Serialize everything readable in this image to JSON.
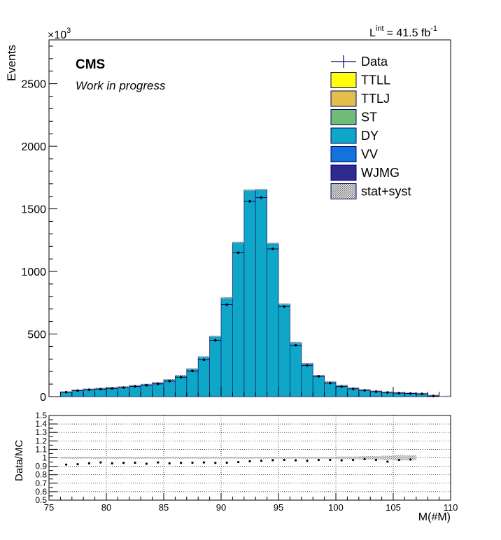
{
  "chart_data": [
    {
      "type": "bar",
      "stacked": true,
      "ylabel": "Events",
      "y_scale_label": "×10",
      "y_scale_exp": "3",
      "lumi_label": "L",
      "lumi_sup": "int",
      "lumi_value": "= 41.5 fb",
      "lumi_unit_exp": "-1",
      "cms_label": "CMS",
      "status_label": "Work in progress",
      "xlim": [
        75,
        110
      ],
      "ylim": [
        0,
        2850
      ],
      "yticks": [
        0,
        500,
        1000,
        1500,
        2000,
        2500
      ],
      "x_bin_edges": [
        76,
        77,
        78,
        79,
        80,
        81,
        82,
        83,
        84,
        85,
        86,
        87,
        88,
        89,
        90,
        91,
        92,
        93,
        94,
        95,
        96,
        97,
        98,
        99,
        100,
        101,
        102,
        103,
        104,
        105,
        106,
        107,
        108,
        109,
        110
      ],
      "series": [
        {
          "name": "DY",
          "color": "#0fa7c7",
          "values": [
            38,
            52,
            60,
            66,
            72,
            78,
            88,
            98,
            112,
            135,
            168,
            222,
            318,
            482,
            790,
            1232,
            1650,
            1655,
            1225,
            740,
            432,
            265,
            168,
            118,
            90,
            70,
            55,
            44,
            36,
            32,
            28,
            25,
            10,
            3
          ]
        },
        {
          "name": "VV",
          "color": "#1173db",
          "values": [
            0,
            0,
            0,
            0,
            0,
            0,
            0,
            0,
            0,
            0,
            0,
            0,
            0,
            0,
            0,
            0,
            0,
            0,
            0,
            0,
            0,
            0,
            0,
            0,
            0,
            0,
            0,
            0,
            0,
            0,
            0,
            0,
            0,
            0
          ]
        },
        {
          "name": "WJMG",
          "color": "#2f2a90",
          "values": [
            0,
            0,
            0,
            0,
            0,
            0,
            0,
            0,
            0,
            0,
            0,
            0,
            0,
            0,
            0,
            0,
            0,
            0,
            0,
            0,
            0,
            0,
            0,
            0,
            0,
            0,
            0,
            0,
            0,
            0,
            0,
            0,
            0,
            0
          ]
        }
      ],
      "data_points": [
        35,
        48,
        55,
        60,
        66,
        72,
        82,
        91,
        102,
        124,
        155,
        205,
        295,
        450,
        735,
        1150,
        1560,
        1590,
        1180,
        720,
        410,
        250,
        162,
        108,
        80,
        62,
        50,
        40,
        33,
        28,
        25,
        22,
        5,
        null
      ],
      "legend": [
        {
          "label": "Data",
          "style": "marker",
          "color": "#00006b"
        },
        {
          "label": "TTLL",
          "style": "fill",
          "color": "#ffff0b"
        },
        {
          "label": "TTLJ",
          "style": "fill",
          "color": "#e3bf4a"
        },
        {
          "label": "ST",
          "style": "fill",
          "color": "#70bb77"
        },
        {
          "label": "DY",
          "style": "fill",
          "color": "#0fa7c7"
        },
        {
          "label": "VV",
          "style": "fill",
          "color": "#1173db"
        },
        {
          "label": "WJMG",
          "style": "fill",
          "color": "#2f2a90"
        },
        {
          "label": "stat+syst",
          "style": "hatch",
          "color": "#555555"
        }
      ],
      "legend_position": "top-right"
    },
    {
      "type": "scatter",
      "xlabel": "M(#M)",
      "ylabel": "Data/MC",
      "xlim": [
        75,
        110
      ],
      "ylim": [
        0.5,
        1.5
      ],
      "grid": true,
      "xticks": [
        75,
        80,
        85,
        90,
        95,
        100,
        105,
        110
      ],
      "yticks": [
        0.5,
        0.6,
        0.7,
        0.8,
        0.9,
        1,
        1.1,
        1.2,
        1.3,
        1.4,
        1.5
      ],
      "x": [
        76.5,
        77.5,
        78.5,
        79.5,
        80.5,
        81.5,
        82.5,
        83.5,
        84.5,
        85.5,
        86.5,
        87.5,
        88.5,
        89.5,
        90.5,
        91.5,
        92.5,
        93.5,
        94.5,
        95.5,
        96.5,
        97.5,
        98.5,
        99.5,
        100.5,
        101.5,
        102.5,
        103.5,
        104.5,
        105.5,
        106.5
      ],
      "y": [
        0.92,
        0.925,
        0.935,
        0.945,
        0.935,
        0.94,
        0.942,
        0.93,
        0.945,
        0.935,
        0.94,
        0.942,
        0.945,
        0.94,
        0.942,
        0.95,
        0.96,
        0.965,
        0.972,
        0.975,
        0.97,
        0.965,
        0.975,
        0.975,
        0.97,
        0.975,
        0.985,
        0.975,
        0.955,
        0.975,
        0.98
      ],
      "band_halfwidth": [
        0.01,
        0.01,
        0.01,
        0.01,
        0.01,
        0.01,
        0.01,
        0.01,
        0.01,
        0.01,
        0.01,
        0.01,
        0.01,
        0.01,
        0.01,
        0.01,
        0.01,
        0.01,
        0.01,
        0.01,
        0.01,
        0.01,
        0.01,
        0.01,
        0.015,
        0.015,
        0.02,
        0.02,
        0.025,
        0.03,
        0.03
      ]
    }
  ]
}
